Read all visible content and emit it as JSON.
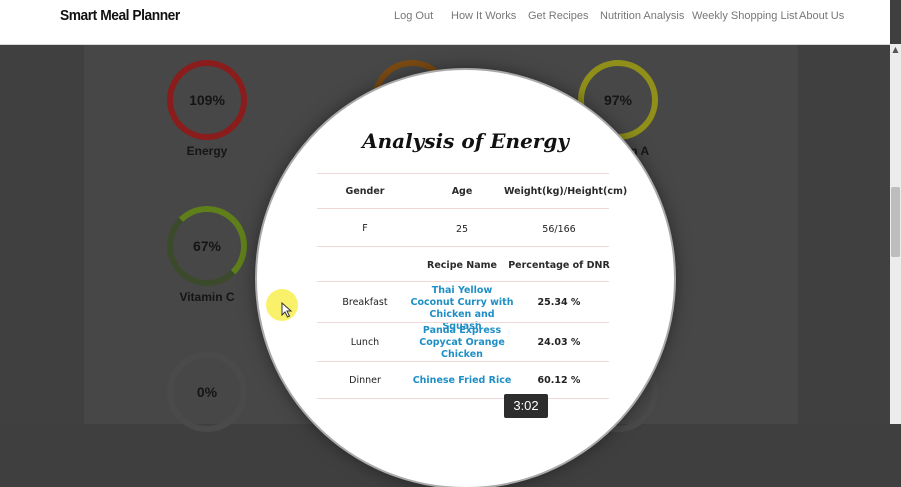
{
  "navbar": {
    "brand": "Smart Meal Planner",
    "links": [
      "Log Out",
      "How It Works",
      "Get Recipes",
      "Nutrition Analysis",
      "Weekly Shopping List",
      "About Us"
    ]
  },
  "rings": [
    {
      "name": "energy",
      "value": "109%",
      "label": "Energy"
    },
    {
      "name": "vitamin-a",
      "value": "97%",
      "label": "in A"
    },
    {
      "name": "vitamin-c",
      "value": "67%",
      "label": "Vitamin C"
    },
    {
      "name": "unnamed",
      "value": "0%",
      "label": ""
    }
  ],
  "analysis": {
    "title": "Analysis of Energy",
    "profile_headers": [
      "Gender",
      "Age",
      "Weight(kg)/Height(cm)"
    ],
    "profile_values": [
      "F",
      "25",
      "56/166"
    ],
    "meal_headers": [
      "",
      "Recipe Name",
      "Percentage of DNR"
    ],
    "meals": [
      {
        "meal": "Breakfast",
        "recipe": "Thai Yellow Coconut Curry with Chicken and Squash",
        "percentage": "25.34 %"
      },
      {
        "meal": "Lunch",
        "recipe": "Panda Express Copycat Orange Chicken",
        "percentage": "24.03 %"
      },
      {
        "meal": "Dinner",
        "recipe": "Chinese Fried Rice",
        "percentage": "60.12 %"
      }
    ]
  },
  "video": {
    "timestamp": "3:02"
  },
  "colors": {
    "energy_ring": "#8b1c1c",
    "vitamin_a_ring": "#8f8f1a",
    "vitamin_c_ring": "#5f7f1a",
    "recipe_link": "#1e8fc6"
  }
}
